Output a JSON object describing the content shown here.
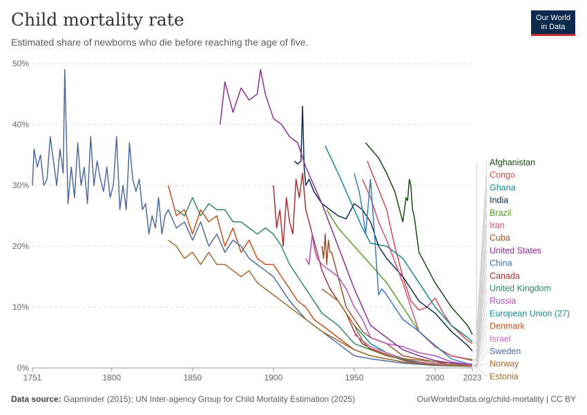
{
  "header": {
    "title": "Child mortality rate",
    "subtitle": "Estimated share of newborns who die before reaching the age of five.",
    "logo_line1": "Our World",
    "logo_line2": "in Data"
  },
  "footer": {
    "source_label": "Data source:",
    "source_text": " Gapminder (2015); UN Inter-agency Group for Child Mortality Estimation (2025)",
    "link": "OurWorldinData.org/child-mortality | CC BY"
  },
  "colors": {
    "grid": "#dddddd",
    "axis": "#999999",
    "text": "#666666"
  },
  "chart_data": {
    "type": "line",
    "title": "Child mortality rate",
    "xlabel": "",
    "ylabel": "",
    "xlim": [
      1751,
      2023
    ],
    "ylim": [
      0,
      50
    ],
    "x_ticks": [
      1751,
      1800,
      1850,
      1900,
      1950,
      2000,
      2023
    ],
    "y_ticks": [
      0,
      10,
      20,
      30,
      40,
      50
    ],
    "y_tick_labels": [
      "0%",
      "10%",
      "20%",
      "30%",
      "40%",
      "50%"
    ],
    "series": [
      {
        "name": "Afghanistan",
        "color": "#18470f",
        "x": [
          1957,
          1965,
          1970,
          1975,
          1980,
          1982,
          1983,
          1984,
          1985,
          1986,
          1987,
          1990,
          2000,
          2010,
          2020,
          2023
        ],
        "y": [
          37,
          34.5,
          32,
          29,
          24,
          28,
          27.5,
          31,
          30,
          26,
          25,
          19,
          14,
          10,
          7,
          5.5
        ]
      },
      {
        "name": "Congo",
        "color": "#cf4a4a",
        "x": [
          1958,
          1970,
          1975,
          1980,
          1985,
          1990,
          1995,
          2000,
          2005,
          2010,
          2020,
          2023
        ],
        "y": [
          34,
          26,
          20,
          15,
          11,
          9.5,
          10,
          11.5,
          9,
          7,
          4.5,
          4
        ]
      },
      {
        "name": "Ghana",
        "color": "#138a8a",
        "x": [
          1932,
          1940,
          1950,
          1955,
          1960,
          1970,
          1980,
          1990,
          2000,
          2010,
          2020,
          2023
        ],
        "y": [
          36.5,
          32,
          26,
          23,
          20.5,
          20,
          18,
          14,
          10,
          7,
          5,
          4.3
        ]
      },
      {
        "name": "India",
        "color": "#0d2a4e",
        "x": [
          1913,
          1915,
          1917,
          1918,
          1919,
          1920,
          1922,
          1925,
          1930,
          1935,
          1940,
          1945,
          1950,
          1955,
          1960,
          1965,
          1970,
          1980,
          1990,
          2000,
          2010,
          2020,
          2023
        ],
        "y": [
          34,
          33.5,
          34,
          43,
          33,
          30,
          31,
          29,
          27,
          26,
          25,
          24.5,
          27,
          26,
          24,
          20,
          18,
          15,
          11,
          9,
          6,
          3.7,
          2.8
        ]
      },
      {
        "name": "Brazil",
        "color": "#579b26",
        "x": [
          1933,
          1940,
          1950,
          1960,
          1970,
          1980,
          1990,
          2000,
          2010,
          2020,
          2023
        ],
        "y": [
          26,
          23,
          20,
          17,
          14,
          10,
          6,
          3.5,
          2,
          1.5,
          1.4
        ]
      },
      {
        "name": "Iran",
        "color": "#d44a6e",
        "x": [
          1955,
          1960,
          1965,
          1970,
          1980,
          1990,
          2000,
          2010,
          2020,
          2023
        ],
        "y": [
          31,
          28,
          24,
          21,
          14,
          6,
          3.5,
          2,
          1.4,
          1.2
        ]
      },
      {
        "name": "Cuba",
        "color": "#9a5129",
        "x": [
          1930,
          1931,
          1932,
          1933,
          1934,
          1935,
          1936,
          1940,
          1945,
          1950,
          1955,
          1960,
          1970,
          1980,
          2000,
          2023
        ],
        "y": [
          20,
          18,
          22,
          17,
          21,
          19,
          19,
          15,
          10,
          8,
          6,
          5,
          4,
          2,
          1,
          0.6
        ]
      },
      {
        "name": "United States",
        "color": "#8a2d8f",
        "x": [
          1867,
          1870,
          1875,
          1880,
          1885,
          1890,
          1892,
          1895,
          1900,
          1905,
          1910,
          1915,
          1920,
          1930,
          1940,
          1950,
          1960,
          1970,
          1980,
          1990,
          2000,
          2010,
          2023
        ],
        "y": [
          40,
          47,
          42,
          46,
          44,
          45,
          49,
          45,
          41,
          40,
          38,
          37,
          33,
          27,
          20,
          13,
          7,
          5,
          3,
          2,
          1.2,
          0.8,
          0.6
        ]
      },
      {
        "name": "China",
        "color": "#3b77bb",
        "x": [
          1950,
          1953,
          1955,
          1957,
          1960,
          1963,
          1965,
          1967,
          1970,
          1975,
          1980,
          1990,
          2000,
          2010,
          2020,
          2023
        ],
        "y": [
          32,
          29,
          26,
          22,
          31,
          20,
          12,
          13,
          12,
          10,
          8,
          6,
          3.7,
          1.5,
          0.7,
          0.6
        ]
      },
      {
        "name": "Canada",
        "color": "#a62f2f",
        "x": [
          1900,
          1902,
          1904,
          1906,
          1908,
          1910,
          1912,
          1914,
          1916,
          1918,
          1920,
          1922,
          1925,
          1930,
          1935,
          1940,
          1945,
          1950,
          1955,
          1960,
          1970,
          1980,
          1990,
          2000,
          2023
        ],
        "y": [
          30,
          23,
          26,
          20,
          28,
          24,
          22,
          31,
          28,
          32,
          26,
          24,
          21,
          16,
          13,
          11,
          9,
          6,
          4,
          3.2,
          2.2,
          1.3,
          0.8,
          0.6,
          0.5
        ]
      },
      {
        "name": "United Kingdom",
        "color": "#2f8a5e",
        "x": [
          1840,
          1845,
          1850,
          1855,
          1860,
          1865,
          1870,
          1875,
          1880,
          1885,
          1890,
          1895,
          1900,
          1905,
          1910,
          1915,
          1920,
          1925,
          1930,
          1940,
          1950,
          1960,
          1970,
          1980,
          1990,
          2000,
          2023
        ],
        "y": [
          26,
          25,
          28,
          25,
          27,
          26,
          26,
          24,
          24,
          23,
          22,
          23,
          22,
          20,
          17,
          15,
          13,
          11,
          9,
          7,
          4,
          3,
          2,
          1.4,
          0.9,
          0.7,
          0.4
        ]
      },
      {
        "name": "Russia",
        "color": "#b04eb5",
        "x": [
          1920,
          1922,
          1924,
          1925,
          1927,
          1930,
          1935,
          1940,
          1945,
          1950,
          1955,
          1960,
          1970,
          1980,
          1990,
          2000,
          2010,
          2023
        ],
        "y": [
          18,
          17,
          22,
          20,
          18,
          17,
          16,
          15,
          13,
          10,
          8,
          5,
          4,
          3.5,
          2.5,
          2,
          1,
          0.5
        ]
      },
      {
        "name": "European Union (27)",
        "color": "#158d8d",
        "x": [
          1950,
          1955,
          1960,
          1970,
          1980,
          1990,
          2000,
          2010,
          2023
        ],
        "y": [
          7,
          5.5,
          4,
          2.5,
          1.5,
          1,
          0.7,
          0.5,
          0.4
        ]
      },
      {
        "name": "Denmark",
        "color": "#c2501a",
        "x": [
          1835,
          1840,
          1845,
          1850,
          1855,
          1860,
          1865,
          1870,
          1875,
          1880,
          1885,
          1890,
          1895,
          1900,
          1905,
          1910,
          1915,
          1920,
          1925,
          1930,
          1940,
          1950,
          1960,
          1980,
          2000,
          2023
        ],
        "y": [
          30,
          25,
          26,
          22,
          26,
          24,
          25,
          20,
          23,
          19,
          21,
          18,
          17,
          17,
          15,
          13,
          11,
          10,
          8,
          7,
          5,
          3,
          2,
          1,
          0.6,
          0.4
        ]
      },
      {
        "name": "Israel",
        "color": "#c06bbd",
        "x": [
          1950,
          1955,
          1960,
          1970,
          1980,
          1990,
          2000,
          2010,
          2023
        ],
        "y": [
          5.5,
          4.5,
          3.5,
          2.5,
          1.6,
          1,
          0.7,
          0.5,
          0.35
        ]
      },
      {
        "name": "Sweden",
        "color": "#4c6a9c",
        "x": [
          1751,
          1752,
          1754,
          1756,
          1758,
          1760,
          1762,
          1764,
          1766,
          1768,
          1770,
          1771,
          1773,
          1775,
          1777,
          1779,
          1781,
          1783,
          1785,
          1787,
          1789,
          1791,
          1793,
          1795,
          1797,
          1799,
          1801,
          1803,
          1805,
          1807,
          1809,
          1811,
          1813,
          1815,
          1817,
          1819,
          1821,
          1823,
          1825,
          1827,
          1829,
          1831,
          1833,
          1835,
          1840,
          1845,
          1850,
          1855,
          1860,
          1865,
          1870,
          1875,
          1880,
          1885,
          1890,
          1895,
          1900,
          1905,
          1910,
          1920,
          1930,
          1940,
          1950,
          1960,
          1980,
          2000,
          2023
        ],
        "y": [
          30,
          36,
          33,
          35,
          30,
          31,
          38,
          34,
          30,
          36,
          32,
          49,
          27,
          33,
          28,
          37,
          30,
          33,
          27,
          38,
          30,
          34,
          31,
          29,
          33,
          28,
          30,
          38,
          26,
          30,
          26,
          37,
          31,
          29,
          31,
          26,
          27,
          22,
          25,
          23,
          28,
          22,
          25,
          26,
          23,
          24,
          21,
          24,
          20,
          22,
          19,
          21,
          20,
          18,
          17,
          16,
          15,
          13,
          11,
          8,
          6,
          4,
          2,
          1.5,
          0.8,
          0.4,
          0.25
        ]
      },
      {
        "name": "Norway",
        "color": "#a36b2e",
        "x": [
          1835,
          1840,
          1845,
          1850,
          1855,
          1860,
          1865,
          1870,
          1875,
          1880,
          1885,
          1890,
          1895,
          1900,
          1905,
          1910,
          1920,
          1930,
          1940,
          1950,
          1960,
          1980,
          2000,
          2023
        ],
        "y": [
          21,
          20,
          18,
          19,
          17,
          19,
          17,
          17,
          16,
          15,
          16,
          14,
          13,
          12,
          11,
          10,
          8,
          6,
          4.5,
          3,
          2,
          1,
          0.5,
          0.25
        ]
      },
      {
        "name": "Estonia",
        "color": "#9b6d2a",
        "x": [
          1930,
          1935,
          1940,
          1945,
          1950,
          1955,
          1960,
          1970,
          1980,
          1990,
          2000,
          2010,
          2023
        ],
        "y": [
          13,
          12,
          11,
          9,
          7,
          4.5,
          3,
          2,
          1.5,
          1.3,
          1,
          0.5,
          0.25
        ]
      }
    ]
  }
}
